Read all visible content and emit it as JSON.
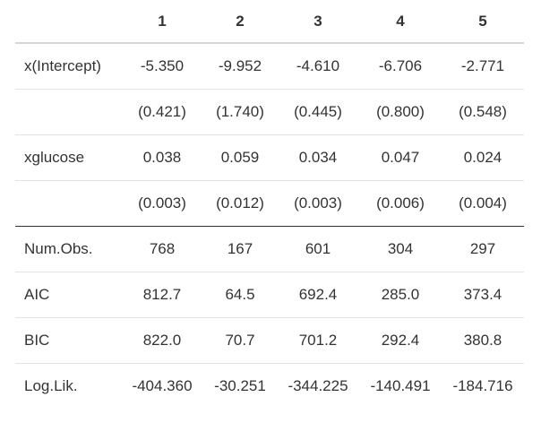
{
  "table": {
    "header": [
      "1",
      "2",
      "3",
      "4",
      "5"
    ],
    "rows": [
      {
        "label": "x(Intercept)",
        "cells": [
          "-5.350",
          "-9.952",
          "-4.610",
          "-6.706",
          "-2.771"
        ]
      },
      {
        "cells": [
          "(0.421)",
          "(1.740)",
          "(0.445)",
          "(0.800)",
          "(0.548)"
        ]
      },
      {
        "label": "xglucose",
        "cells": [
          "0.038",
          "0.059",
          "0.034",
          "0.047",
          "0.024"
        ]
      },
      {
        "cells": [
          "(0.003)",
          "(0.012)",
          "(0.003)",
          "(0.006)",
          "(0.004)"
        ]
      },
      {
        "label": "Num.Obs.",
        "cells": [
          "768",
          "167",
          "601",
          "304",
          "297"
        ]
      },
      {
        "label": "AIC",
        "cells": [
          "812.7",
          "64.5",
          "692.4",
          "285.0",
          "373.4"
        ]
      },
      {
        "label": "BIC",
        "cells": [
          "822.0",
          "70.7",
          "701.2",
          "292.4",
          "380.8"
        ]
      },
      {
        "label": "Log.Lik.",
        "cells": [
          "-404.360",
          "-30.251",
          "-344.225",
          "-140.491",
          "-184.716"
        ]
      }
    ]
  }
}
